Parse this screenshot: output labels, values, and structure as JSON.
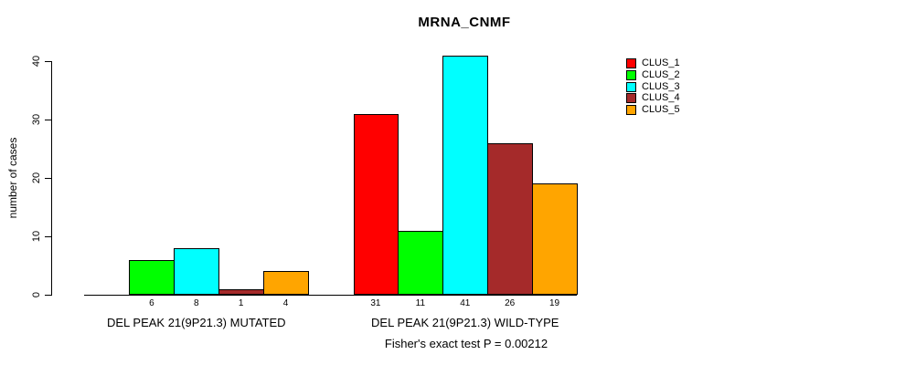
{
  "chart_data": {
    "type": "bar",
    "title": "MRNA_CNMF",
    "xlabel": "",
    "ylabel": "number of cases",
    "ylim": [
      0,
      41
    ],
    "yticks": [
      0,
      10,
      20,
      30,
      40
    ],
    "grid": false,
    "legend_position": "right-outside-top",
    "categories": [
      "DEL PEAK 21(9P21.3) MUTATED",
      "DEL PEAK 21(9P21.3) WILD-TYPE"
    ],
    "series": [
      {
        "name": "CLUS_1",
        "color": "#ff0000",
        "values": [
          0,
          31
        ]
      },
      {
        "name": "CLUS_2",
        "color": "#00ff00",
        "values": [
          6,
          11
        ]
      },
      {
        "name": "CLUS_3",
        "color": "#00ffff",
        "values": [
          8,
          41
        ]
      },
      {
        "name": "CLUS_4",
        "color": "#a52a2a",
        "values": [
          1,
          26
        ]
      },
      {
        "name": "CLUS_5",
        "color": "#ffa500",
        "values": [
          4,
          19
        ]
      }
    ],
    "zero_values_unlabeled": true,
    "annotation": "Fisher's exact test P = 0.00212",
    "axis_color": "#000000",
    "bar_border_color": "#000000"
  }
}
